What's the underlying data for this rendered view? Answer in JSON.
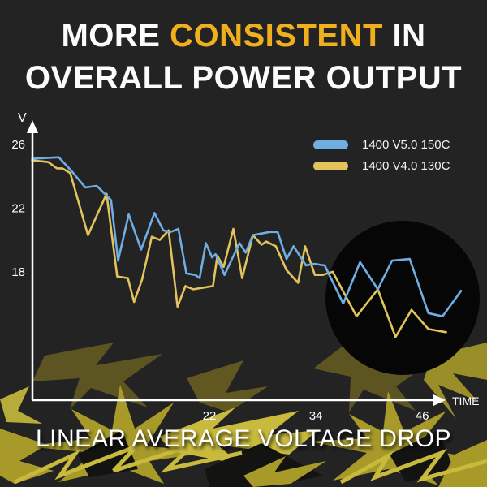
{
  "title": {
    "line1_prefix": "MORE ",
    "line1_highlight": "CONSISTENT",
    "line1_suffix": " IN",
    "line2": "OVERALL POWER OUTPUT"
  },
  "caption": "LINEAR AVERAGE VOLTAGE DROP",
  "colors": {
    "background": "#232323",
    "highlight_gold": "#F0B01E",
    "series_blue": "#6FAEE3",
    "series_yellow": "#E2C35C",
    "axis": "#FFFFFF",
    "spotlight_circle": "#060606",
    "bolt_olive": "#A79A29",
    "bolt_bright": "#C8BA3C",
    "bolt_dark": "#6B6220"
  },
  "chart_data": {
    "type": "line",
    "title": "",
    "xlabel": "TIME",
    "ylabel": "V",
    "xticks": [
      22,
      34,
      46
    ],
    "yticks": [
      26,
      22,
      18
    ],
    "xlim": [
      2,
      50.5
    ],
    "ylim": [
      13,
      26.5
    ],
    "grid": false,
    "legend_position": "top-right",
    "series": [
      {
        "name": "1400 V5.0 150C",
        "color_key": "series_blue",
        "points": [
          [
            2,
            25.1
          ],
          [
            5,
            25.2
          ],
          [
            6.5,
            24.3
          ],
          [
            8,
            23.3
          ],
          [
            9.3,
            23.4
          ],
          [
            10.9,
            22.5
          ],
          [
            11.7,
            18.7
          ],
          [
            12.9,
            21.6
          ],
          [
            14.3,
            19.4
          ],
          [
            15.8,
            21.7
          ],
          [
            16.8,
            20.6
          ],
          [
            17.6,
            20.5
          ],
          [
            18.5,
            20.7
          ],
          [
            19.4,
            17.9
          ],
          [
            20.4,
            17.8
          ],
          [
            20.9,
            17.6
          ],
          [
            21.6,
            19.8
          ],
          [
            22.3,
            18.9
          ],
          [
            22.7,
            19.1
          ],
          [
            23.7,
            17.8
          ],
          [
            25.4,
            19.8
          ],
          [
            26.1,
            19.2
          ],
          [
            26.9,
            20.3
          ],
          [
            28.8,
            20.5
          ],
          [
            29.7,
            20.5
          ],
          [
            30.7,
            18.8
          ],
          [
            31.5,
            19.6
          ],
          [
            32.9,
            18.4
          ],
          [
            33.8,
            18.5
          ],
          [
            35,
            18.4
          ],
          [
            37.1,
            16.0
          ],
          [
            39,
            18.6
          ],
          [
            41,
            16.9
          ],
          [
            42.6,
            18.7
          ],
          [
            44.6,
            18.8
          ],
          [
            46.7,
            15.4
          ],
          [
            48.3,
            15.2
          ],
          [
            50.4,
            16.8
          ]
        ]
      },
      {
        "name": "1400 V4.0 130C",
        "color_key": "series_yellow",
        "points": [
          [
            2,
            25.0
          ],
          [
            3.8,
            24.9
          ],
          [
            4.8,
            24.5
          ],
          [
            5.4,
            24.5
          ],
          [
            6.3,
            24.2
          ],
          [
            8.3,
            20.3
          ],
          [
            10.4,
            22.9
          ],
          [
            11.6,
            17.7
          ],
          [
            12.8,
            17.6
          ],
          [
            13.5,
            16.1
          ],
          [
            14.4,
            17.5
          ],
          [
            15.5,
            20.2
          ],
          [
            16.4,
            20.0
          ],
          [
            17.4,
            20.6
          ],
          [
            18.4,
            15.8
          ],
          [
            19.3,
            17.1
          ],
          [
            20.2,
            16.9
          ],
          [
            22.4,
            17.1
          ],
          [
            22.9,
            19.0
          ],
          [
            23.6,
            18.3
          ],
          [
            24.7,
            20.7
          ],
          [
            25.7,
            17.6
          ],
          [
            26.9,
            20.3
          ],
          [
            27.9,
            19.7
          ],
          [
            28.4,
            19.9
          ],
          [
            29.5,
            19.6
          ],
          [
            30.7,
            18.1
          ],
          [
            32,
            17.3
          ],
          [
            32.8,
            19.6
          ],
          [
            33.9,
            17.8
          ],
          [
            34.8,
            17.8
          ],
          [
            35.9,
            18.0
          ],
          [
            38.6,
            15.2
          ],
          [
            41,
            16.9
          ],
          [
            43,
            13.9
          ],
          [
            44.8,
            15.6
          ],
          [
            46.7,
            14.4
          ],
          [
            48.7,
            14.2
          ]
        ]
      }
    ],
    "annotations": [
      {
        "type": "spotlight-circle",
        "center_t": 43.8,
        "center_v": 16.3,
        "note": "dark circular highlight over right portion of lines"
      }
    ]
  }
}
